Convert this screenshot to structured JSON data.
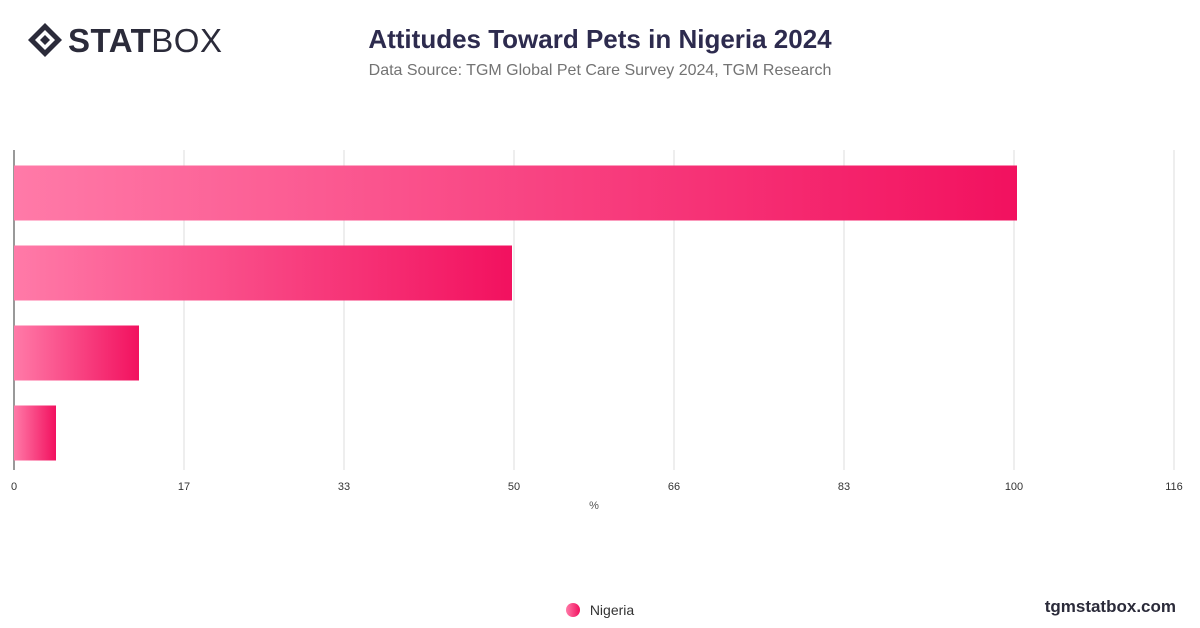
{
  "brand": {
    "logo_bold": "STAT",
    "logo_light": "BOX",
    "footer": "tgmstatbox.com"
  },
  "header": {
    "title": "Attitudes Toward Pets in Nigeria 2024",
    "subtitle": "Data Source: TGM Global Pet Care Survey 2024, TGM Research"
  },
  "colors": {
    "bar_start": "#ff7aa8",
    "bar_end": "#f2115f",
    "grid": "#dddddd",
    "text": "#333333"
  },
  "chart_data": {
    "type": "bar",
    "orientation": "horizontal",
    "title": "Attitudes Toward Pets in Nigeria 2024",
    "xlabel": "%",
    "xlim": [
      0,
      116
    ],
    "ticks": [
      0,
      17,
      33,
      50,
      66,
      83,
      100,
      116
    ],
    "grid": true,
    "legend_position": "bottom",
    "series": [
      {
        "name": "Nigeria",
        "values": [
          100.3,
          49.8,
          12.5,
          4.2
        ]
      }
    ]
  }
}
